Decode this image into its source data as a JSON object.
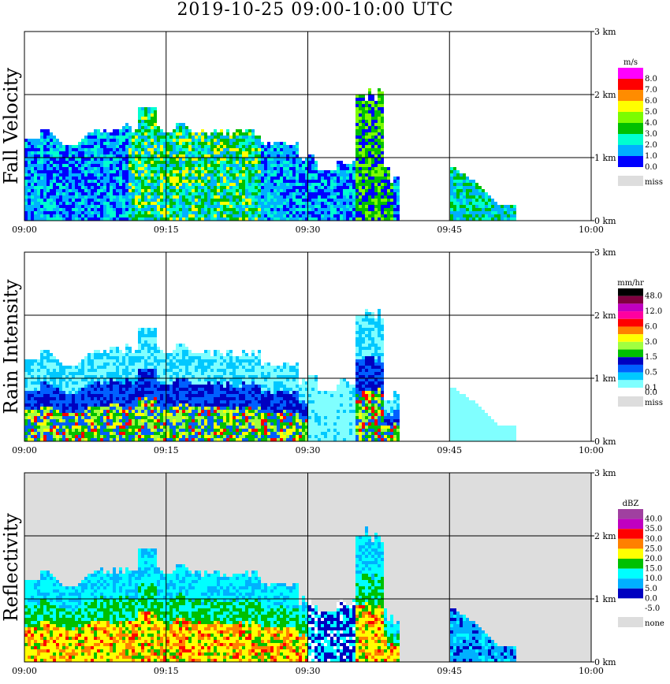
{
  "title": "2019-10-25   09:00-10:00 UTC",
  "chart_data": [
    {
      "type": "heatmap",
      "ylabel": "Fall Velocity",
      "x_ticks": [
        "09:00",
        "09:15",
        "09:30",
        "09:45",
        "10:00"
      ],
      "y_ticks": [
        "0 km",
        "1 km",
        "2 km",
        "3 km"
      ],
      "xlim": [
        0,
        60
      ],
      "ylim": [
        0,
        3
      ],
      "grid": true,
      "background": "#ffffff",
      "colorbar": {
        "unit": "m/s",
        "levels": [
          {
            "label": "8.0",
            "color": "#ff00ff"
          },
          {
            "label": "7.0",
            "color": "#ff0000"
          },
          {
            "label": "6.0",
            "color": "#ff8c00"
          },
          {
            "label": "5.0",
            "color": "#ffff00"
          },
          {
            "label": "4.0",
            "color": "#7cfc00"
          },
          {
            "label": "3.0",
            "color": "#00c000"
          },
          {
            "label": "2.0",
            "color": "#00ffd0"
          },
          {
            "label": "1.0",
            "color": "#00b0ff"
          },
          {
            "label": "0.0",
            "color": "#0000ff"
          }
        ],
        "missing": {
          "label": "miss",
          "color": "#dddddd"
        }
      }
    },
    {
      "type": "heatmap",
      "ylabel": "Rain Intensity",
      "x_ticks": [
        "09:00",
        "09:15",
        "09:30",
        "09:45",
        "10:00"
      ],
      "y_ticks": [
        "0 km",
        "1 km",
        "2 km",
        "3 km"
      ],
      "xlim": [
        0,
        60
      ],
      "ylim": [
        0,
        3
      ],
      "grid": true,
      "background": "#ffffff",
      "colorbar": {
        "unit": "mm/hr",
        "levels": [
          {
            "label": "48.0",
            "color": "#000000"
          },
          {
            "label": "",
            "color": "#800040"
          },
          {
            "label": "12.0",
            "color": "#c000c0"
          },
          {
            "label": "",
            "color": "#ff00a0"
          },
          {
            "label": "6.0",
            "color": "#ff0000"
          },
          {
            "label": "",
            "color": "#ff8000"
          },
          {
            "label": "3.0",
            "color": "#ffff00"
          },
          {
            "label": "",
            "color": "#a0ff40"
          },
          {
            "label": "1.5",
            "color": "#00c000"
          },
          {
            "label": "",
            "color": "#0000c0"
          },
          {
            "label": "0.5",
            "color": "#0060ff"
          },
          {
            "label": "",
            "color": "#00c8ff"
          },
          {
            "label": "0.1",
            "color": "#80ffff"
          }
        ],
        "zero_label": "0.0",
        "missing": {
          "label": "miss",
          "color": "#dddddd"
        }
      }
    },
    {
      "type": "heatmap",
      "ylabel": "Reflectivity",
      "x_ticks": [
        "09:00",
        "09:15",
        "09:30",
        "09:45",
        "10:00"
      ],
      "y_ticks": [
        "0 km",
        "1 km",
        "2 km",
        "3 km"
      ],
      "xlim": [
        0,
        60
      ],
      "ylim": [
        0,
        3
      ],
      "grid": true,
      "background": "#dddddd",
      "colorbar": {
        "unit": "dBZ",
        "levels": [
          {
            "label": "40.0",
            "color": "#a040a0"
          },
          {
            "label": "35.0",
            "color": "#c000c0"
          },
          {
            "label": "30.0",
            "color": "#ff0000"
          },
          {
            "label": "25.0",
            "color": "#ff8000"
          },
          {
            "label": "20.0",
            "color": "#ffff00"
          },
          {
            "label": "15.0",
            "color": "#00c000"
          },
          {
            "label": "10.0",
            "color": "#00ffff"
          },
          {
            "label": "5.0",
            "color": "#00b0ff"
          },
          {
            "label": "0.0",
            "color": "#0000c0"
          },
          {
            "label": "-5.0",
            "color": "#ffffff"
          }
        ],
        "missing": {
          "label": "none",
          "color": "#dddddd"
        }
      }
    }
  ]
}
